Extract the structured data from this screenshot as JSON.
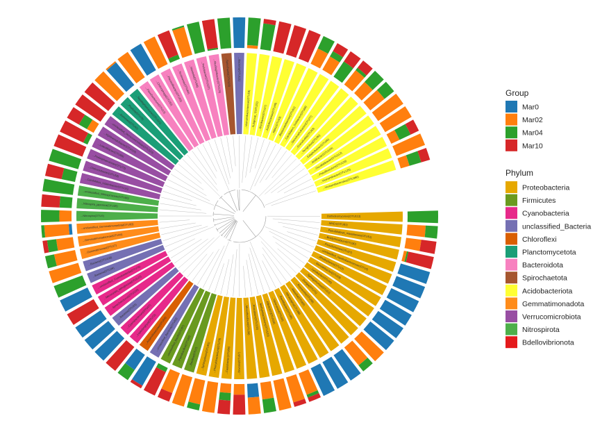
{
  "chart_data": {
    "type": "circular-tree-stacked-bar",
    "group_legend": {
      "title": "Group",
      "items": [
        {
          "name": "Mar0",
          "color": "#1f78b4"
        },
        {
          "name": "Mar02",
          "color": "#ff7f0e"
        },
        {
          "name": "Mar04",
          "color": "#2ca02c"
        },
        {
          "name": "Mar10",
          "color": "#d62728"
        }
      ]
    },
    "phylum_legend": {
      "title": "Phylum",
      "items": [
        {
          "name": "Proteobacteria",
          "color": "#e6a800"
        },
        {
          "name": "Firmicutes",
          "color": "#6a9a1f"
        },
        {
          "name": "Cyanobacteria",
          "color": "#e7298a"
        },
        {
          "name": "unclassified_Bacteria",
          "color": "#7570b3"
        },
        {
          "name": "Chloroflexi",
          "color": "#d95f02"
        },
        {
          "name": "Planctomycetota",
          "color": "#1b9e77"
        },
        {
          "name": "Bacteroidota",
          "color": "#f781bf"
        },
        {
          "name": "Spirochaetota",
          "color": "#a6562f"
        },
        {
          "name": "Acidobacteriota",
          "color": "#ffff33"
        },
        {
          "name": "Gemmatimonadota",
          "color": "#ff8c1a"
        },
        {
          "name": "Verrucomicrobiota",
          "color": "#984ea3"
        },
        {
          "name": "Nitrospirota",
          "color": "#4daf4a"
        },
        {
          "name": "Bdellovibrionota",
          "color": "#e41a1c"
        }
      ]
    },
    "tips": [
      {
        "phylum": "Proteobacteria",
        "label": "Dothideomycetes(OTU113)",
        "group_fracs": [
          0.0,
          0.0,
          1.0,
          0.0
        ]
      },
      {
        "phylum": "Proteobacteria",
        "label": "...MND1(OTU81)",
        "group_fracs": [
          0.0,
          0.6,
          0.4,
          0.0
        ]
      },
      {
        "phylum": "Proteobacteria",
        "label": "...Pseudolabrys_massiliensis(OTU51)",
        "group_fracs": [
          0.0,
          0.5,
          0.0,
          0.5
        ]
      },
      {
        "phylum": "Proteobacteria",
        "label": "...Bradyrhizobium(OTU30)",
        "group_fracs": [
          0.0,
          0.1,
          0.05,
          0.85
        ]
      },
      {
        "phylum": "Proteobacteria",
        "label": "...Pseudomonas(OTU27)",
        "group_fracs": [
          1.0,
          0.0,
          0.0,
          0.0
        ]
      },
      {
        "phylum": "Proteobacteria",
        "label": "...unclassified_Xanthobacteraceae(OTU4)",
        "group_fracs": [
          1.0,
          0.0,
          0.0,
          0.0
        ]
      },
      {
        "phylum": "Proteobacteria",
        "label": "...Rhodoplanes(OTU12)",
        "group_fracs": [
          1.0,
          0.0,
          0.0,
          0.0
        ]
      },
      {
        "phylum": "Proteobacteria",
        "label": "...Steroidobacter(OTU29)",
        "group_fracs": [
          1.0,
          0.0,
          0.0,
          0.0
        ]
      },
      {
        "phylum": "Proteobacteria",
        "label": "...Lysobacter(OTU40)",
        "group_fracs": [
          1.0,
          0.0,
          0.0,
          0.0
        ]
      },
      {
        "phylum": "Proteobacteria",
        "label": "...Sphingomonas(OTU22)",
        "group_fracs": [
          1.0,
          0.0,
          0.0,
          0.0
        ]
      },
      {
        "phylum": "Proteobacteria",
        "label": "...Dongia(OTU71)",
        "group_fracs": [
          0.0,
          1.0,
          0.0,
          0.0
        ]
      },
      {
        "phylum": "Proteobacteria",
        "label": "...Reyranella(OTU48)",
        "group_fracs": [
          0.0,
          0.75,
          0.25,
          0.0
        ]
      },
      {
        "phylum": "Proteobacteria",
        "label": "...Massilia(OTU60)",
        "group_fracs": [
          1.0,
          0.0,
          0.0,
          0.0
        ]
      },
      {
        "phylum": "Proteobacteria",
        "label": "...Nitrosospira(OTU88)",
        "group_fracs": [
          1.0,
          0.0,
          0.0,
          0.0
        ]
      },
      {
        "phylum": "Proteobacteria",
        "label": "...Ramlibacter(OTU95)",
        "group_fracs": [
          1.0,
          0.0,
          0.0,
          0.0
        ]
      },
      {
        "phylum": "Proteobacteria",
        "label": "...Variovorax(OTU33)",
        "group_fracs": [
          0.0,
          0.75,
          0.1,
          0.15
        ]
      },
      {
        "phylum": "Proteobacteria",
        "label": "...Ellin6067(OTU116)",
        "group_fracs": [
          0.0,
          0.85,
          0.0,
          0.15
        ]
      },
      {
        "phylum": "Proteobacteria",
        "label": "...Methylobacterium(OTU121)",
        "group_fracs": [
          0.0,
          1.0,
          0.0,
          0.0
        ]
      },
      {
        "phylum": "Proteobacteria",
        "label": "...Rhizobium(OTU103)",
        "group_fracs": [
          0.0,
          0.55,
          0.45,
          0.0
        ]
      },
      {
        "phylum": "Proteobacteria",
        "label": "...Mesorhizobium(OTU36)",
        "group_fracs": [
          0.45,
          0.55,
          0.0,
          0.0
        ]
      },
      {
        "phylum": "Proteobacteria",
        "label": "...Devosia(OTU57)",
        "group_fracs": [
          0.0,
          0.35,
          0.0,
          0.65
        ]
      },
      {
        "phylum": "Proteobacteria",
        "label": "...Caulobacter(OTU66)",
        "group_fracs": [
          0.0,
          0.3,
          0.25,
          0.45
        ]
      },
      {
        "phylum": "Proteobacteria",
        "label": "...Phenylobacterium(OTU78)",
        "group_fracs": [
          0.0,
          1.0,
          0.0,
          0.0
        ]
      },
      {
        "phylum": "Proteobacteria",
        "label": "...Sphingobium(OTU91)",
        "group_fracs": [
          0.0,
          0.8,
          0.2,
          0.0
        ]
      },
      {
        "phylum": "Firmicutes",
        "label": "...Bacillus(OTU7)",
        "group_fracs": [
          0.0,
          1.0,
          0.0,
          0.0
        ]
      },
      {
        "phylum": "Firmicutes",
        "label": "...Paenibacillus(OTU64)",
        "group_fracs": [
          0.0,
          0.7,
          0.0,
          0.3
        ]
      },
      {
        "phylum": "Firmicutes",
        "label": "...unclassified_Bacilli(OTU97)",
        "group_fracs": [
          0.0,
          0.0,
          0.15,
          0.85
        ]
      },
      {
        "phylum": "unclassified_Bacteria",
        "label": "...unclassified_Bacteria(OTU82)",
        "group_fracs": [
          0.9,
          0.0,
          0.0,
          0.1
        ]
      },
      {
        "phylum": "Chloroflexi",
        "label": "...Anaerolineaceae(OTU54)",
        "group_fracs": [
          0.6,
          0.0,
          0.4,
          0.0
        ]
      },
      {
        "phylum": "Cyanobacteria",
        "label": "...Leptolyngbya(OTU72)",
        "group_fracs": [
          0.0,
          0.0,
          0.0,
          1.0
        ]
      },
      {
        "phylum": "Cyanobacteria",
        "label": "...Cyanobacterium(OTU47)",
        "group_fracs": [
          1.0,
          0.0,
          0.0,
          0.0
        ]
      },
      {
        "phylum": "unclassified_Bacteria",
        "label": "...Bacteria(OTU24)",
        "group_fracs": [
          1.0,
          0.0,
          0.0,
          0.0
        ]
      },
      {
        "phylum": "Cyanobacteria",
        "label": "...Synechococcus(OTU118)",
        "group_fracs": [
          1.0,
          0.0,
          0.0,
          0.0
        ]
      },
      {
        "phylum": "Cyanobacteria",
        "label": "...Microcystis_aeruginosa(OTU122)",
        "group_fracs": [
          0.0,
          0.0,
          0.0,
          1.0
        ]
      },
      {
        "phylum": "Cyanobacteria",
        "label": "...unclassified_Cyanobacteriia(OTU75)",
        "group_fracs": [
          1.0,
          0.0,
          0.0,
          0.0
        ]
      },
      {
        "phylum": "unclassified_Bacteria",
        "label": "...Bacteria(OTU39)",
        "group_fracs": [
          0.0,
          0.0,
          1.0,
          0.0
        ]
      },
      {
        "phylum": "unclassified_Bacteria",
        "label": "...Bacteria(OTU108)",
        "group_fracs": [
          0.0,
          1.0,
          0.0,
          0.0
        ]
      },
      {
        "phylum": "Gemmatimonadota",
        "label": "...Gemmatimonas(OTU17)",
        "group_fracs": [
          0.0,
          0.7,
          0.3,
          0.0
        ]
      },
      {
        "phylum": "Gemmatimonadota",
        "label": "...Gemmatimonadaceae(OTU44)",
        "group_fracs": [
          0.0,
          0.55,
          0.3,
          0.15
        ]
      },
      {
        "phylum": "Gemmatimonadota",
        "label": "...unclassified_Gemmatimonadota(OTU63)",
        "group_fracs": [
          0.1,
          0.8,
          0.1,
          0.0
        ]
      },
      {
        "phylum": "Nitrospirota",
        "label": "...Nitrospira(OTU9)",
        "group_fracs": [
          0.0,
          0.4,
          0.6,
          0.0
        ]
      },
      {
        "phylum": "Nitrospirota",
        "label": "...Nitrospira_japonica(OTU35)",
        "group_fracs": [
          0.0,
          0.0,
          0.4,
          0.6
        ]
      },
      {
        "phylum": "Nitrospirota",
        "label": "...unclassified_Nitrospiraceae(OTU86)",
        "group_fracs": [
          0.0,
          0.0,
          1.0,
          0.0
        ]
      },
      {
        "phylum": "Verrucomicrobiota",
        "label": "...Candidatus_Udaeobacter(OTU15)",
        "group_fracs": [
          0.0,
          0.0,
          0.45,
          0.55
        ]
      },
      {
        "phylum": "Verrucomicrobiota",
        "label": "...Chthoniobacter(OTU58)",
        "group_fracs": [
          0.0,
          0.0,
          1.0,
          0.0
        ]
      },
      {
        "phylum": "Verrucomicrobiota",
        "label": "...Pedosphaeraceae(OTU73)",
        "group_fracs": [
          0.0,
          0.0,
          0.0,
          1.0
        ]
      },
      {
        "phylum": "Verrucomicrobiota",
        "label": "...Luteolibacter(OTU99)",
        "group_fracs": [
          0.0,
          0.0,
          0.15,
          0.85
        ]
      },
      {
        "phylum": "Verrucomicrobiota",
        "label": "...Xiphinematobacter(OTU110)",
        "group_fracs": [
          0.0,
          0.25,
          0.3,
          0.45
        ]
      },
      {
        "phylum": "Verrucomicrobiota",
        "label": "...unclassified_Verrucomicrobiae(OTU124)",
        "group_fracs": [
          0.0,
          0.0,
          0.0,
          1.0
        ]
      },
      {
        "phylum": "Planctomycetota",
        "label": "...Gemmata(OTU42)",
        "group_fracs": [
          0.0,
          0.0,
          0.0,
          1.0
        ]
      },
      {
        "phylum": "Planctomycetota",
        "label": "...Pirellula(OTU79)",
        "group_fracs": [
          0.0,
          1.0,
          0.0,
          0.0
        ]
      },
      {
        "phylum": "Planctomycetota",
        "label": "...Tepidisphaeraceae(OTU101)",
        "group_fracs": [
          0.95,
          0.05,
          0.0,
          0.0
        ]
      },
      {
        "phylum": "Bacteroidota",
        "label": "...Flavobacterium(OTU13)",
        "group_fracs": [
          0.0,
          1.0,
          0.0,
          0.0
        ]
      },
      {
        "phylum": "Bacteroidota",
        "label": "...Chitinophaga(OTU52)",
        "group_fracs": [
          1.0,
          0.0,
          0.0,
          0.0
        ]
      },
      {
        "phylum": "Bacteroidota",
        "label": "...Flavisolibacter(OTU69)",
        "group_fracs": [
          0.0,
          1.0,
          0.0,
          0.0
        ]
      },
      {
        "phylum": "Bacteroidota",
        "label": "...Terrimonas(OTU84)",
        "group_fracs": [
          0.0,
          0.0,
          0.15,
          0.85
        ]
      },
      {
        "phylum": "Bacteroidota",
        "label": "...Niastella(OTU94)",
        "group_fracs": [
          0.0,
          0.95,
          0.05,
          0.0
        ]
      },
      {
        "phylum": "Bacteroidota",
        "label": "...Pedobacter(OTU107)",
        "group_fracs": [
          0.0,
          0.0,
          1.0,
          0.0
        ]
      },
      {
        "phylum": "Bacteroidota",
        "label": "...Mucilaginibacter(OTU119)",
        "group_fracs": [
          0.0,
          0.0,
          0.05,
          0.95
        ]
      },
      {
        "phylum": "Spirochaetota",
        "label": "...Spirochaeta(OTU126)",
        "group_fracs": [
          0.0,
          0.0,
          1.0,
          0.0
        ]
      },
      {
        "phylum": "unclassified_Bacteria",
        "label": "...Bacteria(OTU111)",
        "group_fracs": [
          1.0,
          0.0,
          0.0,
          0.0
        ]
      },
      {
        "phylum": "Acidobacteriota",
        "label": "...Vicinamibacteraceae(OTU18)",
        "group_fracs": [
          0.0,
          0.1,
          0.9,
          0.0
        ]
      },
      {
        "phylum": "Acidobacteriota",
        "label": "...Subgroup_7(OTU23)",
        "group_fracs": [
          0.0,
          0.0,
          0.85,
          0.15
        ]
      },
      {
        "phylum": "Acidobacteriota",
        "label": "...Bryobacter(OTU37)",
        "group_fracs": [
          0.0,
          0.0,
          0.0,
          1.0
        ]
      },
      {
        "phylum": "Acidobacteriota",
        "label": "...Acidobacteriae(OTU46)",
        "group_fracs": [
          0.0,
          0.0,
          0.0,
          1.0
        ]
      },
      {
        "phylum": "Acidobacteriota",
        "label": "...RB41(OTU53)",
        "group_fracs": [
          0.0,
          0.0,
          0.0,
          1.0
        ]
      },
      {
        "phylum": "Acidobacteriota",
        "label": "...Blastocatellaceae(OTU61)",
        "group_fracs": [
          0.0,
          0.55,
          0.45,
          0.0
        ]
      },
      {
        "phylum": "Acidobacteriota",
        "label": "...Candidatus_Solibacter(OTU68)",
        "group_fracs": [
          0.0,
          0.5,
          0.2,
          0.3
        ]
      },
      {
        "phylum": "Acidobacteriota",
        "label": "...Stenotrophobacter(OTU77)",
        "group_fracs": [
          0.0,
          0.0,
          0.6,
          0.4
        ]
      },
      {
        "phylum": "Acidobacteriota",
        "label": "...Granulicella(OTU83)",
        "group_fracs": [
          0.0,
          0.6,
          0.1,
          0.3
        ]
      },
      {
        "phylum": "Acidobacteriota",
        "label": "...Terriglobus(OTU90)",
        "group_fracs": [
          0.0,
          0.5,
          0.5,
          0.0
        ]
      },
      {
        "phylum": "Acidobacteriota",
        "label": "...Edaphobacter(OTU96)",
        "group_fracs": [
          0.0,
          0.6,
          0.4,
          0.0
        ]
      },
      {
        "phylum": "Acidobacteriota",
        "label": "...Aridibacter(OTU104)",
        "group_fracs": [
          0.0,
          1.0,
          0.0,
          0.0
        ]
      },
      {
        "phylum": "Acidobacteriota",
        "label": "...Occallatibacter(OTU112)",
        "group_fracs": [
          0.0,
          1.0,
          0.0,
          0.0
        ]
      },
      {
        "phylum": "Acidobacteriota",
        "label": "...Paludibaculum(OTU120)",
        "group_fracs": [
          0.0,
          0.3,
          0.4,
          0.3
        ]
      },
      {
        "phylum": "Acidobacteriota",
        "label": "...Vicinamibacter(OTU125)",
        "group_fracs": [
          0.0,
          1.0,
          0.0,
          0.0
        ]
      },
      {
        "phylum": "Acidobacteriota",
        "label": "...Vicinamibacterales(OTU380)",
        "group_fracs": [
          0.0,
          0.3,
          0.4,
          0.3
        ]
      }
    ]
  }
}
